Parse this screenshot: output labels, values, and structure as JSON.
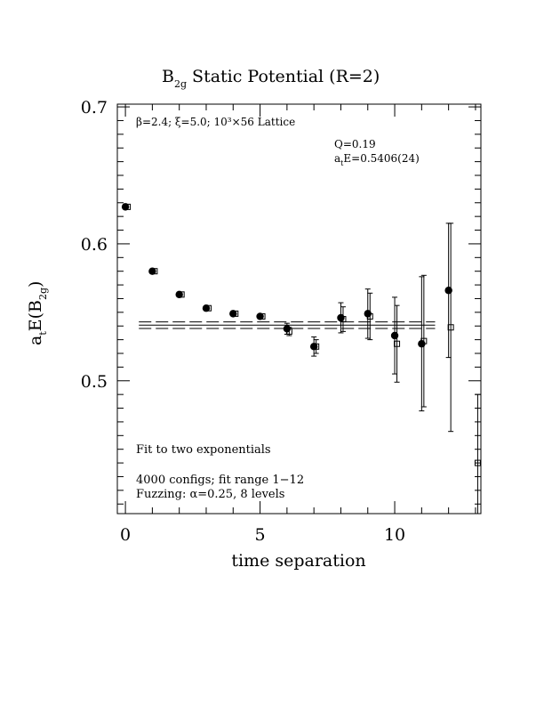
{
  "chart_data": {
    "type": "scatter",
    "title": "B",
    "title_sub": "2g",
    "title_rest": " Static Potential (R=2)",
    "xlabel": "time separation",
    "ylabel_main": "a",
    "ylabel_sub_t": "t",
    "ylabel_mid": "E(B",
    "ylabel_sub_2g": "2g",
    "ylabel_end": ")",
    "xlim": [
      -0.3,
      13.2
    ],
    "ylim": [
      0.403,
      0.702
    ],
    "x_ticks": [
      0,
      5,
      10
    ],
    "x_tick_labels": [
      "0",
      "5",
      "10"
    ],
    "y_ticks": [
      0.5,
      0.6,
      0.7
    ],
    "y_tick_labels": [
      "0.5",
      "0.6",
      "0.7"
    ],
    "annotations": {
      "lattice": "β=2.4; ξ=5.0; 10³×56 Lattice",
      "q": "Q=0.19",
      "energy_prefix": "a",
      "energy_sub": "t",
      "energy_value": "E=0.5406(24)",
      "fit_note": "Fit to two exponentials",
      "configs": "4000 configs; fit range 1−12",
      "fuzzing": "Fuzzing: α=0.25, 8 levels"
    },
    "fit": {
      "value": 0.5406,
      "error": 0.0024,
      "x_range": [
        0.5,
        11.5
      ]
    },
    "series": [
      {
        "marker": "filled-circle",
        "points": [
          {
            "x": 0,
            "y": 0.627,
            "err": 0.0
          },
          {
            "x": 1,
            "y": 0.58,
            "err": 0.0
          },
          {
            "x": 2,
            "y": 0.563,
            "err": 0.0
          },
          {
            "x": 3,
            "y": 0.553,
            "err": 0.0
          },
          {
            "x": 4,
            "y": 0.549,
            "err": 0.0
          },
          {
            "x": 5,
            "y": 0.547,
            "err": 0.0
          },
          {
            "x": 6,
            "y": 0.538,
            "err": 0.004
          },
          {
            "x": 7,
            "y": 0.525,
            "err": 0.007
          },
          {
            "x": 8,
            "y": 0.546,
            "err": 0.011
          },
          {
            "x": 9,
            "y": 0.549,
            "err": 0.018
          },
          {
            "x": 10,
            "y": 0.533,
            "err": 0.028
          },
          {
            "x": 11,
            "y": 0.527,
            "err": 0.049
          },
          {
            "x": 12,
            "y": 0.566,
            "err": 0.049
          }
        ]
      },
      {
        "marker": "open-square",
        "points": [
          {
            "x": 0,
            "y": 0.627,
            "err": 0.0
          },
          {
            "x": 1,
            "y": 0.58,
            "err": 0.0
          },
          {
            "x": 2,
            "y": 0.563,
            "err": 0.0
          },
          {
            "x": 3,
            "y": 0.553,
            "err": 0.0
          },
          {
            "x": 4,
            "y": 0.549,
            "err": 0.0
          },
          {
            "x": 5,
            "y": 0.547,
            "err": 0.0
          },
          {
            "x": 6,
            "y": 0.536,
            "err": 0.003
          },
          {
            "x": 7,
            "y": 0.525,
            "err": 0.005
          },
          {
            "x": 8,
            "y": 0.545,
            "err": 0.009
          },
          {
            "x": 9,
            "y": 0.547,
            "err": 0.017
          },
          {
            "x": 10,
            "y": 0.527,
            "err": 0.028
          },
          {
            "x": 11,
            "y": 0.529,
            "err": 0.048
          },
          {
            "x": 12,
            "y": 0.539,
            "err": 0.076
          },
          {
            "x": 13,
            "y": 0.44,
            "err": 0.05
          }
        ]
      }
    ]
  }
}
